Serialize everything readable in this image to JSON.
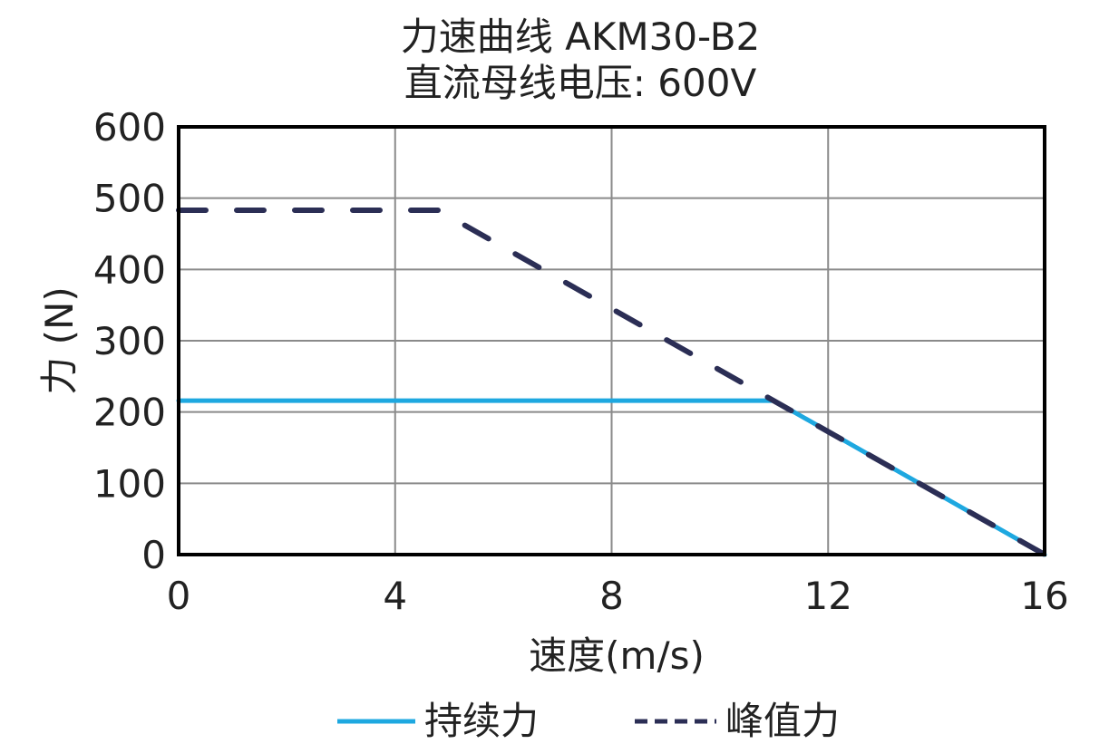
{
  "chart_data": {
    "type": "line",
    "title": [
      "力速曲线 AKM30-B2",
      "直流母线电压: 600V"
    ],
    "xlabel": "速度(m/s)",
    "ylabel": "力 (N)",
    "xlim": [
      0,
      16
    ],
    "ylim": [
      0,
      600
    ],
    "xticks": [
      0,
      4,
      8,
      12,
      16
    ],
    "yticks": [
      0,
      100,
      200,
      300,
      400,
      500,
      600
    ],
    "grid": true,
    "legend_position": "bottom-center",
    "series": [
      {
        "name": "持续力",
        "style": "solid",
        "color": "#1ea8e0",
        "x": [
          0,
          11,
          16
        ],
        "y": [
          216,
          216,
          0
        ]
      },
      {
        "name": "峰值力",
        "style": "dashed",
        "color": "#2b2e55",
        "x": [
          0,
          4.8,
          16
        ],
        "y": [
          483,
          483,
          0
        ]
      }
    ]
  }
}
